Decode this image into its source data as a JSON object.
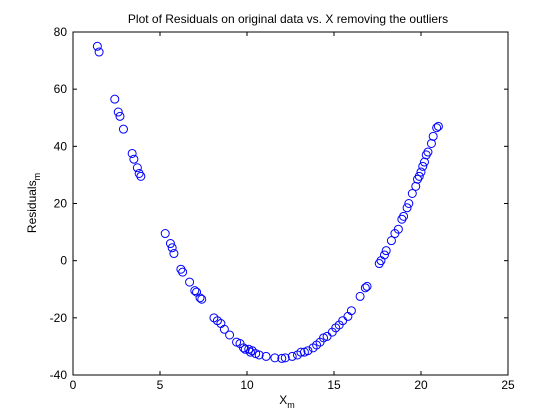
{
  "chart_data": {
    "type": "scatter",
    "title": "Plot of Residuals on original data vs. X removing the outliers",
    "xlabel": {
      "main": "X",
      "sub": "m"
    },
    "ylabel": {
      "main": "Residuals",
      "sub": "m"
    },
    "xlim": [
      0,
      25
    ],
    "ylim": [
      -40,
      80
    ],
    "xticks": [
      0,
      5,
      10,
      15,
      20,
      25
    ],
    "yticks": [
      -40,
      -20,
      0,
      20,
      40,
      60,
      80
    ],
    "grid": false,
    "marker": "circle-open",
    "color": "#0000ff",
    "series": [
      {
        "points": [
          [
            1.4,
            75.0
          ],
          [
            1.5,
            73.0
          ],
          [
            2.4,
            56.5
          ],
          [
            2.6,
            52.0
          ],
          [
            2.7,
            50.5
          ],
          [
            2.9,
            46.0
          ],
          [
            3.4,
            37.5
          ],
          [
            3.5,
            35.5
          ],
          [
            3.7,
            32.5
          ],
          [
            3.8,
            30.5
          ],
          [
            3.9,
            29.5
          ],
          [
            5.3,
            9.5
          ],
          [
            5.6,
            6.0
          ],
          [
            5.7,
            4.5
          ],
          [
            5.8,
            2.5
          ],
          [
            6.2,
            -3.0
          ],
          [
            6.3,
            -4.0
          ],
          [
            6.7,
            -7.5
          ],
          [
            7.0,
            -10.5
          ],
          [
            7.1,
            -11.0
          ],
          [
            7.3,
            -13.0
          ],
          [
            7.4,
            -13.5
          ],
          [
            8.1,
            -20.0
          ],
          [
            8.3,
            -21.0
          ],
          [
            8.5,
            -22.0
          ],
          [
            8.7,
            -24.0
          ],
          [
            9.0,
            -26.0
          ],
          [
            9.4,
            -28.5
          ],
          [
            9.6,
            -29.0
          ],
          [
            9.8,
            -30.5
          ],
          [
            9.9,
            -31.0
          ],
          [
            10.1,
            -31.0
          ],
          [
            10.2,
            -32.0
          ],
          [
            10.3,
            -31.5
          ],
          [
            10.5,
            -32.5
          ],
          [
            10.7,
            -33.0
          ],
          [
            11.1,
            -33.5
          ],
          [
            11.6,
            -34.0
          ],
          [
            12.0,
            -34.2
          ],
          [
            12.2,
            -34.0
          ],
          [
            12.6,
            -33.5
          ],
          [
            12.9,
            -33.0
          ],
          [
            13.1,
            -32.0
          ],
          [
            13.3,
            -32.0
          ],
          [
            13.5,
            -31.5
          ],
          [
            13.8,
            -30.5
          ],
          [
            14.0,
            -29.5
          ],
          [
            14.2,
            -28.5
          ],
          [
            14.4,
            -27.0
          ],
          [
            14.6,
            -26.5
          ],
          [
            14.9,
            -25.0
          ],
          [
            15.1,
            -23.5
          ],
          [
            15.3,
            -22.5
          ],
          [
            15.5,
            -21.0
          ],
          [
            15.8,
            -19.5
          ],
          [
            16.0,
            -17.5
          ],
          [
            16.5,
            -12.5
          ],
          [
            16.8,
            -9.5
          ],
          [
            16.9,
            -9.0
          ],
          [
            17.6,
            -1.0
          ],
          [
            17.7,
            0.0
          ],
          [
            17.9,
            2.0
          ],
          [
            18.0,
            3.5
          ],
          [
            18.3,
            7.0
          ],
          [
            18.5,
            9.5
          ],
          [
            18.7,
            11.0
          ],
          [
            18.9,
            14.5
          ],
          [
            19.0,
            15.5
          ],
          [
            19.2,
            18.5
          ],
          [
            19.3,
            20.0
          ],
          [
            19.5,
            23.5
          ],
          [
            19.7,
            26.0
          ],
          [
            19.8,
            28.5
          ],
          [
            19.9,
            29.5
          ],
          [
            20.0,
            31.0
          ],
          [
            20.1,
            33.0
          ],
          [
            20.2,
            34.5
          ],
          [
            20.3,
            37.0
          ],
          [
            20.4,
            38.0
          ],
          [
            20.6,
            41.0
          ],
          [
            20.7,
            43.5
          ],
          [
            20.9,
            46.5
          ],
          [
            21.0,
            47.0
          ]
        ]
      }
    ]
  }
}
